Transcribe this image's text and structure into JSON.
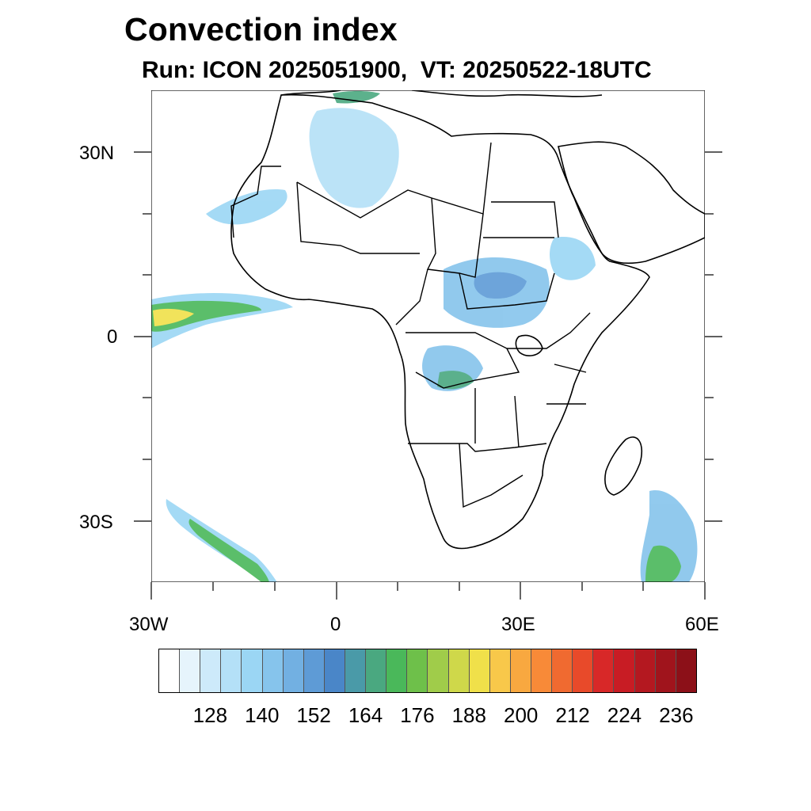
{
  "title": "Convection index",
  "subtitle": "Run: ICON 2025051900,  VT: 20250522-18UTC",
  "map": {
    "region": "Africa",
    "lon_range": [
      -30,
      60
    ],
    "lat_range": [
      -40,
      40
    ],
    "x_ticks": [
      {
        "lon": -30,
        "label": "30W"
      },
      {
        "lon": 0,
        "label": "0"
      },
      {
        "lon": 30,
        "label": "30E"
      },
      {
        "lon": 60,
        "label": "60E"
      }
    ],
    "y_ticks": [
      {
        "lat": 30,
        "label": "30N"
      },
      {
        "lat": 0,
        "label": "0"
      },
      {
        "lat": -30,
        "label": "30S"
      }
    ]
  },
  "colorbar": {
    "colors": [
      "#ffffff",
      "#e6f4fc",
      "#cdeafa",
      "#b4e0f7",
      "#9bd6f4",
      "#86c4ec",
      "#72b0e2",
      "#5e9bd6",
      "#4a86c8",
      "#4a9aa8",
      "#4aa880",
      "#4ab85a",
      "#6ec04a",
      "#a0cc4a",
      "#cfd84a",
      "#f0e04a",
      "#f8c84a",
      "#f8a840",
      "#f88a38",
      "#f06a30",
      "#e84a2a",
      "#d82828",
      "#c81c24",
      "#b41820",
      "#a0141c",
      "#8c1018"
    ],
    "labels": [
      "128",
      "140",
      "152",
      "164",
      "176",
      "188",
      "200",
      "212",
      "224",
      "236"
    ]
  }
}
